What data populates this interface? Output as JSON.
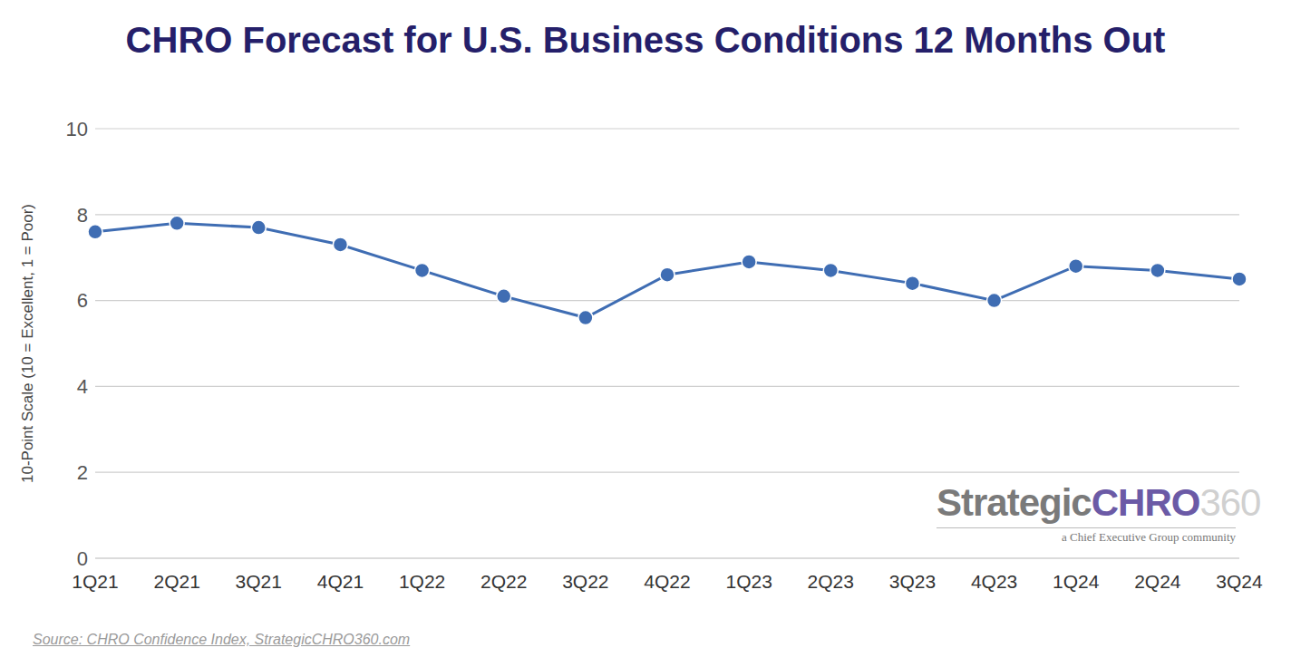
{
  "chart_data": {
    "type": "line",
    "title": "CHRO Forecast for U.S. Business Conditions 12 Months Out",
    "y_label": "10-Point Scale (10 = Excellent, 1 = Poor)",
    "categories": [
      "1Q21",
      "2Q21",
      "3Q21",
      "4Q21",
      "1Q22",
      "2Q22",
      "3Q22",
      "4Q22",
      "1Q23",
      "2Q23",
      "3Q23",
      "4Q23",
      "1Q24",
      "2Q24",
      "3Q24"
    ],
    "values": [
      7.6,
      7.8,
      7.7,
      7.3,
      6.7,
      6.1,
      5.6,
      6.6,
      6.9,
      6.7,
      6.4,
      6.0,
      6.8,
      6.7,
      6.5
    ],
    "color": "#3f6db3",
    "marker": "circle",
    "line_style": "solid",
    "ylim": [
      0,
      10
    ],
    "yticks": [
      0,
      2,
      4,
      6,
      8,
      10
    ],
    "grid": true,
    "source": "Source: CHRO Confidence Index, StrategicCHRO360.com",
    "annotations": [
      "Strategic",
      "CHRO",
      "360",
      "a Chief Executive Group community"
    ]
  }
}
